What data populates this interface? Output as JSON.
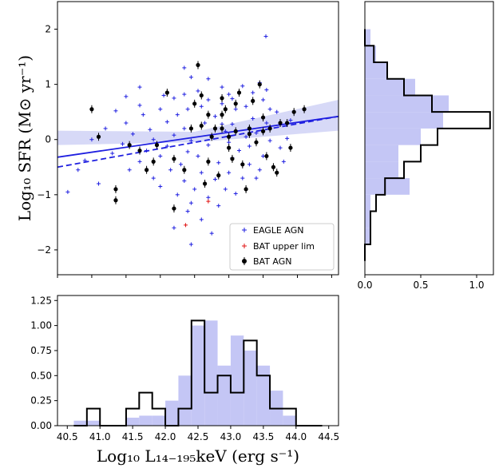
{
  "chart_data": [
    {
      "id": "scatter",
      "type": "scatter",
      "xlabel": "",
      "ylabel": "Log₁₀ SFR (M⊙ yr⁻¹)",
      "xlim": [
        40.5,
        44.6
      ],
      "ylim": [
        -2.45,
        2.5
      ],
      "yticks": [
        -2,
        -1,
        0,
        1,
        2
      ],
      "legend": {
        "position": "bottom-right",
        "entries": [
          {
            "label": "EAGLE AGN",
            "color": "#1f1fe0",
            "marker": "plus"
          },
          {
            "label": "BAT upper lim",
            "color": "#e01010",
            "marker": "plus"
          },
          {
            "label": "BAT AGN",
            "color": "#000000",
            "marker": "dot-errorbar"
          }
        ]
      },
      "fits": [
        {
          "style": "solid",
          "color": "#1f1fe0",
          "x": [
            40.5,
            44.6
          ],
          "y": [
            -0.32,
            0.42
          ]
        },
        {
          "style": "dashed",
          "color": "#1f1fe0",
          "x": [
            40.5,
            44.6
          ],
          "y": [
            -0.5,
            0.42
          ]
        }
      ],
      "fit_band": {
        "color": "#cdd0f5",
        "x": [
          40.5,
          42.5,
          44.6
        ],
        "upper": [
          0.16,
          0.14,
          0.72
        ],
        "lower": [
          -0.1,
          -0.05,
          0.16
        ]
      },
      "series": [
        {
          "name": "EAGLE AGN",
          "color": "#1f1fe0",
          "points": [
            [
              43.54,
              1.87
            ],
            [
              42.35,
              1.3
            ],
            [
              42.45,
              1.13
            ],
            [
              42.7,
              1.1
            ],
            [
              43.45,
              1.03
            ],
            [
              41.7,
              0.95
            ],
            [
              42.9,
              0.95
            ],
            [
              43.2,
              0.97
            ],
            [
              43.55,
              0.9
            ],
            [
              42.55,
              0.88
            ],
            [
              42.35,
              0.82
            ],
            [
              43.0,
              0.82
            ],
            [
              43.35,
              0.85
            ],
            [
              41.5,
              0.78
            ],
            [
              42.2,
              0.75
            ],
            [
              42.7,
              0.72
            ],
            [
              43.05,
              0.74
            ],
            [
              43.5,
              0.72
            ],
            [
              41.7,
              0.62
            ],
            [
              42.6,
              0.6
            ],
            [
              42.9,
              0.65
            ],
            [
              43.25,
              0.6
            ],
            [
              41.35,
              0.52
            ],
            [
              42.0,
              0.55
            ],
            [
              42.4,
              0.55
            ],
            [
              43.1,
              0.55
            ],
            [
              43.7,
              0.5
            ],
            [
              41.75,
              0.45
            ],
            [
              42.25,
              0.45
            ],
            [
              42.8,
              0.42
            ],
            [
              43.35,
              0.38
            ],
            [
              43.9,
              0.35
            ],
            [
              41.5,
              0.3
            ],
            [
              42.1,
              0.32
            ],
            [
              42.65,
              0.3
            ],
            [
              43.05,
              0.28
            ],
            [
              43.55,
              0.3
            ],
            [
              41.2,
              0.2
            ],
            [
              41.85,
              0.18
            ],
            [
              42.35,
              0.2
            ],
            [
              42.95,
              0.15
            ],
            [
              43.4,
              0.12
            ],
            [
              41.6,
              0.1
            ],
            [
              42.2,
              0.08
            ],
            [
              42.75,
              0.05
            ],
            [
              43.25,
              0.05
            ],
            [
              43.85,
              0.02
            ],
            [
              41.9,
              0.0
            ],
            [
              42.45,
              -0.02
            ],
            [
              43.0,
              -0.05
            ],
            [
              43.6,
              -0.02
            ],
            [
              41.45,
              -0.08
            ],
            [
              42.1,
              -0.12
            ],
            [
              42.7,
              -0.1
            ],
            [
              43.3,
              -0.12
            ],
            [
              41.8,
              -0.2
            ],
            [
              42.4,
              -0.22
            ],
            [
              43.15,
              -0.2
            ],
            [
              43.75,
              -0.15
            ],
            [
              41.3,
              -0.25
            ],
            [
              42.0,
              -0.3
            ],
            [
              42.55,
              -0.3
            ],
            [
              43.05,
              -0.33
            ],
            [
              43.5,
              -0.3
            ],
            [
              41.7,
              -0.4
            ],
            [
              42.3,
              -0.45
            ],
            [
              42.85,
              -0.42
            ],
            [
              43.3,
              -0.45
            ],
            [
              40.9,
              -0.38
            ],
            [
              41.55,
              -0.55
            ],
            [
              42.15,
              -0.55
            ],
            [
              42.6,
              -0.6
            ],
            [
              43.0,
              -0.6
            ],
            [
              43.45,
              -0.55
            ],
            [
              41.9,
              -0.7
            ],
            [
              42.35,
              -0.75
            ],
            [
              42.8,
              -0.72
            ],
            [
              43.2,
              -0.7
            ],
            [
              42.0,
              -0.85
            ],
            [
              42.5,
              -0.9
            ],
            [
              42.95,
              -0.9
            ],
            [
              41.1,
              -0.8
            ],
            [
              40.65,
              -0.95
            ],
            [
              42.25,
              -1.0
            ],
            [
              42.7,
              -1.05
            ],
            [
              43.1,
              -0.98
            ],
            [
              42.45,
              -1.15
            ],
            [
              42.85,
              -1.2
            ],
            [
              42.4,
              -1.3
            ],
            [
              42.6,
              -1.45
            ],
            [
              42.2,
              -1.6
            ],
            [
              42.75,
              -1.7
            ],
            [
              42.45,
              -1.9
            ],
            [
              41.0,
              0.0
            ],
            [
              40.8,
              -0.55
            ],
            [
              43.4,
              -0.7
            ],
            [
              42.05,
              0.8
            ],
            [
              42.9,
              0.28
            ],
            [
              43.6,
              0.55
            ],
            [
              43.8,
              -0.4
            ]
          ]
        },
        {
          "name": "BAT upper lim",
          "color": "#e01010",
          "points": [
            [
              42.37,
              -1.55
            ],
            [
              42.7,
              -1.12
            ]
          ]
        },
        {
          "name": "BAT AGN",
          "color": "#000000",
          "points": [
            [
              41.0,
              0.55
            ],
            [
              41.1,
              0.05
            ],
            [
              41.35,
              -1.1
            ],
            [
              41.35,
              -0.9
            ],
            [
              41.55,
              -0.1
            ],
            [
              41.7,
              -0.2
            ],
            [
              41.8,
              -0.55
            ],
            [
              41.9,
              -0.4
            ],
            [
              41.95,
              -0.1
            ],
            [
              42.1,
              0.85
            ],
            [
              42.2,
              -1.25
            ],
            [
              42.2,
              -0.35
            ],
            [
              42.35,
              -0.55
            ],
            [
              42.45,
              0.2
            ],
            [
              42.5,
              0.65
            ],
            [
              42.55,
              1.35
            ],
            [
              42.6,
              0.8
            ],
            [
              42.6,
              0.25
            ],
            [
              42.65,
              -0.8
            ],
            [
              42.7,
              -0.4
            ],
            [
              42.7,
              0.45
            ],
            [
              42.75,
              0.05
            ],
            [
              42.8,
              0.2
            ],
            [
              42.85,
              -0.65
            ],
            [
              42.9,
              0.45
            ],
            [
              42.9,
              0.2
            ],
            [
              42.95,
              0.55
            ],
            [
              43.0,
              -0.15
            ],
            [
              43.0,
              0.05
            ],
            [
              43.05,
              -0.35
            ],
            [
              43.1,
              0.15
            ],
            [
              43.1,
              0.65
            ],
            [
              43.15,
              0.85
            ],
            [
              43.2,
              -0.45
            ],
            [
              43.25,
              -0.9
            ],
            [
              43.3,
              0.2
            ],
            [
              43.3,
              0.1
            ],
            [
              43.35,
              0.7
            ],
            [
              43.4,
              -0.05
            ],
            [
              43.45,
              1.0
            ],
            [
              43.5,
              0.15
            ],
            [
              43.5,
              0.4
            ],
            [
              43.55,
              -0.3
            ],
            [
              43.6,
              0.2
            ],
            [
              43.65,
              -0.5
            ],
            [
              43.7,
              -0.6
            ],
            [
              43.75,
              0.3
            ],
            [
              43.85,
              0.3
            ],
            [
              43.95,
              0.5
            ],
            [
              44.1,
              0.55
            ],
            [
              43.9,
              -0.15
            ],
            [
              42.9,
              0.75
            ]
          ]
        }
      ]
    },
    {
      "id": "side-histogram",
      "type": "bar",
      "orientation": "horizontal",
      "xlim": [
        0,
        1.15
      ],
      "xticks": [
        0.0,
        0.5,
        1.0
      ],
      "bin_edges": [
        -2.2,
        -1.9,
        -1.6,
        -1.3,
        -1.0,
        -0.7,
        -0.4,
        -0.1,
        0.2,
        0.5,
        0.8,
        1.1,
        1.4,
        1.7,
        2.0
      ],
      "series": [
        {
          "name": "EAGLE AGN",
          "style": "filled",
          "color": "#c4c6f5",
          "values": [
            0.0,
            0.05,
            0.05,
            0.05,
            0.4,
            0.3,
            0.3,
            0.5,
            0.7,
            0.75,
            0.45,
            0.2,
            0.1,
            0.05
          ]
        },
        {
          "name": "BAT AGN",
          "style": "step",
          "color": "#000000",
          "values": [
            0.0,
            0.05,
            0.05,
            0.1,
            0.18,
            0.35,
            0.5,
            0.65,
            1.12,
            0.6,
            0.35,
            0.2,
            0.08,
            0.0
          ]
        }
      ]
    },
    {
      "id": "bottom-histogram",
      "type": "bar",
      "orientation": "vertical",
      "xlabel": "Log₁₀ L₁₄₋₁₉₅keV (erg s⁻¹)",
      "xlim": [
        40.35,
        44.65
      ],
      "ylim": [
        0,
        1.3
      ],
      "xticks": [
        "40.5",
        "41.0",
        "41.5",
        "42.0",
        "42.5",
        "43.0",
        "43.5",
        "44.0",
        "44.5"
      ],
      "yticks": [
        "0.00",
        "0.25",
        "0.50",
        "0.75",
        "1.00",
        "1.25"
      ],
      "bin_edges": [
        40.6,
        40.8,
        41.0,
        41.2,
        41.4,
        41.6,
        41.8,
        42.0,
        42.2,
        42.4,
        42.6,
        42.8,
        43.0,
        43.2,
        43.4,
        43.6,
        43.8,
        44.0,
        44.2,
        44.4
      ],
      "series": [
        {
          "name": "EAGLE AGN",
          "style": "filled",
          "color": "#c4c6f5",
          "values": [
            0.05,
            0.05,
            0.0,
            0.0,
            0.08,
            0.1,
            0.1,
            0.25,
            0.5,
            1.0,
            1.05,
            0.6,
            0.9,
            0.75,
            0.6,
            0.35,
            0.1,
            0.0,
            0.0
          ]
        },
        {
          "name": "BAT AGN",
          "style": "step",
          "color": "#000000",
          "values": [
            0.0,
            0.17,
            0.0,
            0.0,
            0.17,
            0.33,
            0.17,
            0.0,
            0.17,
            1.05,
            0.33,
            0.5,
            0.33,
            0.85,
            0.5,
            0.17,
            0.17,
            0.0,
            0.0
          ]
        }
      ]
    }
  ]
}
